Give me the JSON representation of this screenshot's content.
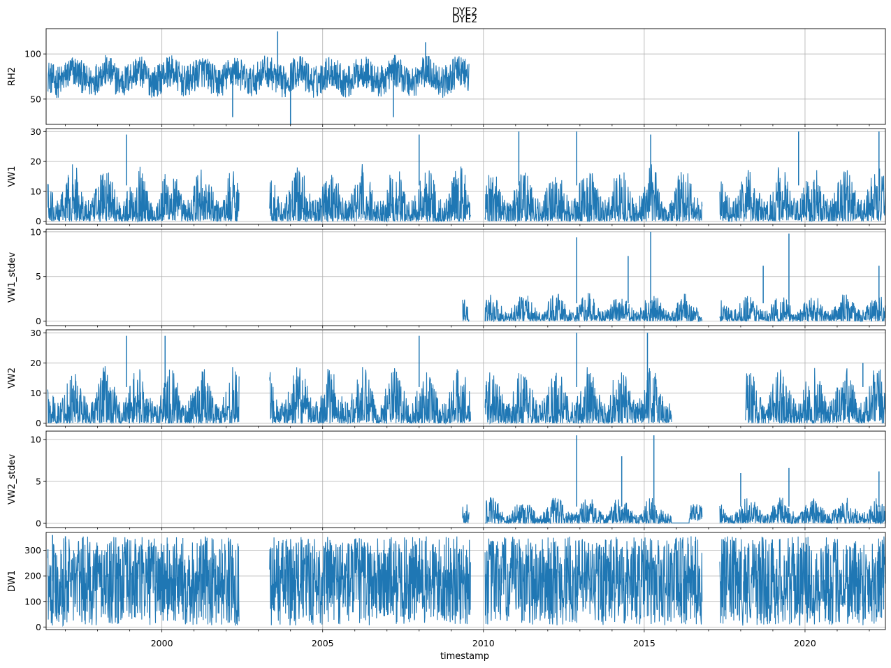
{
  "figure": {
    "suptitle": "DYE2",
    "title": "DYE2",
    "xlabel": "timestamp"
  },
  "chart_data": [
    {
      "type": "line",
      "ylabel": "RH2",
      "color": "#1f77b4",
      "xlim": [
        1996.4,
        2022.5
      ],
      "ylim": [
        22,
        128
      ],
      "yticks": [
        50,
        100
      ],
      "grid": true,
      "segments": [
        [
          1996.45,
          2009.55
        ]
      ],
      "base": 75,
      "noise": 18,
      "spikes": [
        [
          2003.6,
          125
        ],
        [
          2008.2,
          113
        ],
        [
          2004.0,
          22
        ],
        [
          2002.2,
          30
        ],
        [
          2007.2,
          30
        ]
      ],
      "clip": [
        40,
        100
      ],
      "series": [
        {
          "x_range": [
            1996.45,
            2009.55
          ],
          "typical_range": [
            45,
            100
          ],
          "max": 125,
          "min": 22
        }
      ]
    },
    {
      "type": "line",
      "ylabel": "VW1",
      "color": "#1f77b4",
      "xlim": [
        1996.4,
        2022.5
      ],
      "ylim": [
        -1,
        31
      ],
      "yticks": [
        0,
        10,
        20,
        30
      ],
      "grid": true,
      "segments": [
        [
          1996.45,
          2002.4
        ],
        [
          2003.35,
          2009.6
        ],
        [
          2010.05,
          2016.8
        ],
        [
          2017.35,
          2022.5
        ]
      ],
      "base": 5,
      "noise": 9,
      "spikes": [
        [
          1998.9,
          29
        ],
        [
          2008.0,
          29
        ],
        [
          2011.1,
          30
        ],
        [
          2012.9,
          30
        ],
        [
          2015.2,
          29
        ],
        [
          2019.8,
          30
        ],
        [
          2022.3,
          30
        ]
      ],
      "clip": [
        0,
        24
      ],
      "series": [
        {
          "x_range": [
            1996.45,
            2022.5
          ],
          "typical_range": [
            0,
            24
          ],
          "max": 30,
          "min": 0
        }
      ]
    },
    {
      "type": "line",
      "ylabel": "VW1_stdev",
      "color": "#1f77b4",
      "xlim": [
        1996.4,
        2022.5
      ],
      "ylim": [
        -0.5,
        10.3
      ],
      "yticks": [
        0,
        5,
        10
      ],
      "grid": true,
      "segments": [
        [
          2009.35,
          2009.55
        ],
        [
          2010.05,
          2016.8
        ],
        [
          2017.35,
          2022.5
        ]
      ],
      "base": 0.6,
      "noise": 1.4,
      "spikes": [
        [
          2012.9,
          9.4
        ],
        [
          2015.2,
          10
        ],
        [
          2014.5,
          7.3
        ],
        [
          2019.5,
          9.8
        ],
        [
          2018.7,
          6.2
        ],
        [
          2022.3,
          6.2
        ]
      ],
      "clip": [
        0,
        4
      ],
      "series": [
        {
          "x_range": [
            2009.35,
            2022.5
          ],
          "typical_range": [
            0,
            4
          ],
          "max": 10,
          "min": 0
        }
      ]
    },
    {
      "type": "line",
      "ylabel": "VW2",
      "color": "#1f77b4",
      "xlim": [
        1996.4,
        2022.5
      ],
      "ylim": [
        -1,
        31
      ],
      "yticks": [
        0,
        10,
        20,
        30
      ],
      "grid": true,
      "segments": [
        [
          1996.45,
          2002.4
        ],
        [
          2003.35,
          2009.6
        ],
        [
          2010.05,
          2015.85
        ],
        [
          2018.15,
          2022.5
        ]
      ],
      "base": 5,
      "noise": 9,
      "spikes": [
        [
          1998.9,
          29
        ],
        [
          2000.1,
          29
        ],
        [
          2008.0,
          29
        ],
        [
          2012.9,
          30
        ],
        [
          2015.1,
          30
        ],
        [
          2021.8,
          20
        ]
      ],
      "clip": [
        0,
        24
      ],
      "series": [
        {
          "x_range": [
            1996.45,
            2022.5
          ],
          "typical_range": [
            0,
            24
          ],
          "max": 30,
          "min": 0
        }
      ]
    },
    {
      "type": "line",
      "ylabel": "VW2_stdev",
      "color": "#1f77b4",
      "xlim": [
        1996.4,
        2022.5
      ],
      "ylim": [
        -0.5,
        11
      ],
      "yticks": [
        0,
        5,
        10
      ],
      "grid": true,
      "segments": [
        [
          2009.35,
          2009.55
        ],
        [
          2010.05,
          2015.85
        ],
        [
          2015.85,
          2016.8
        ],
        [
          2017.35,
          2022.5
        ]
      ],
      "base": 0.6,
      "noise": 1.4,
      "spikes": [
        [
          2012.9,
          10.5
        ],
        [
          2015.3,
          10.5
        ],
        [
          2014.3,
          8
        ],
        [
          2019.5,
          6.6
        ],
        [
          2018.0,
          6
        ],
        [
          2022.3,
          6.2
        ]
      ],
      "clip": [
        0,
        4
      ],
      "series": [
        {
          "x_range": [
            2009.35,
            2022.5
          ],
          "typical_range": [
            0,
            4
          ],
          "max": 10.5,
          "min": 0
        }
      ]
    },
    {
      "type": "line",
      "ylabel": "DW1",
      "color": "#1f77b4",
      "xlim": [
        1996.4,
        2022.5
      ],
      "ylim": [
        -10,
        370
      ],
      "yticks": [
        0,
        100,
        200,
        300
      ],
      "grid": true,
      "segments": [
        [
          1996.45,
          2002.4
        ],
        [
          2003.35,
          2009.6
        ],
        [
          2010.05,
          2016.8
        ],
        [
          2017.35,
          2022.5
        ]
      ],
      "base": 180,
      "noise": 160,
      "spikes": [
        [
          1996.6,
          360
        ],
        [
          1997.0,
          355
        ]
      ],
      "clip": [
        5,
        355
      ],
      "series": [
        {
          "x_range": [
            1996.45,
            2022.5
          ],
          "typical_range": [
            0,
            360
          ],
          "max": 360,
          "min": 0
        }
      ]
    }
  ],
  "xticks": [
    {
      "value": 2000,
      "label": "2000"
    },
    {
      "value": 2005,
      "label": "2005"
    },
    {
      "value": 2010,
      "label": "2010"
    },
    {
      "value": 2015,
      "label": "2015"
    },
    {
      "value": 2020,
      "label": "2020"
    }
  ]
}
